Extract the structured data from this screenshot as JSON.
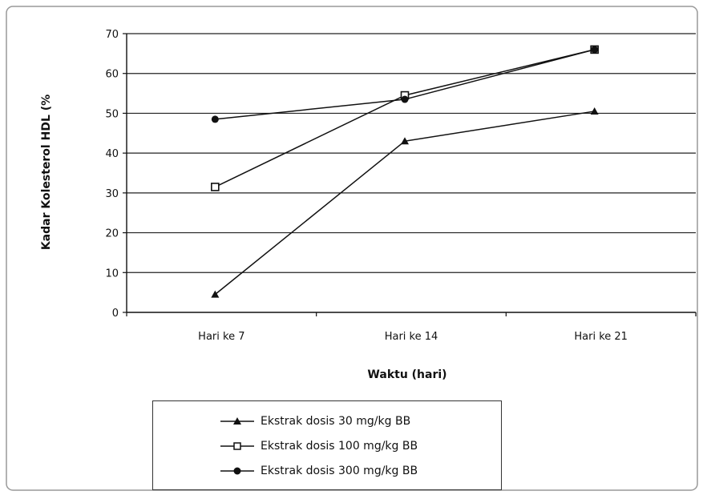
{
  "chart_data": {
    "type": "line",
    "title": "",
    "xlabel": "Waktu (hari)",
    "ylabel": "Kadar Kolesterol HDL (%",
    "categories": [
      "Hari ke 7",
      "Hari ke 14",
      "Hari ke 21"
    ],
    "ylim": [
      0,
      70
    ],
    "yticks": [
      0,
      10,
      20,
      30,
      40,
      50,
      60,
      70
    ],
    "grid": true,
    "legend_position": "bottom",
    "series": [
      {
        "name": "Ekstrak dosis 30 mg/kg BB",
        "marker": "triangle",
        "values": [
          4.5,
          43,
          50.5
        ]
      },
      {
        "name": "Ekstrak dosis 100 mg/kg BB",
        "marker": "square",
        "values": [
          31.5,
          54.5,
          66
        ]
      },
      {
        "name": "Ekstrak dosis 300 mg/kg BB",
        "marker": "circle",
        "values": [
          48.5,
          53.5,
          66
        ]
      }
    ],
    "colors": {
      "line": "#111111",
      "grid": "#222222",
      "background": "#ffffff"
    }
  }
}
